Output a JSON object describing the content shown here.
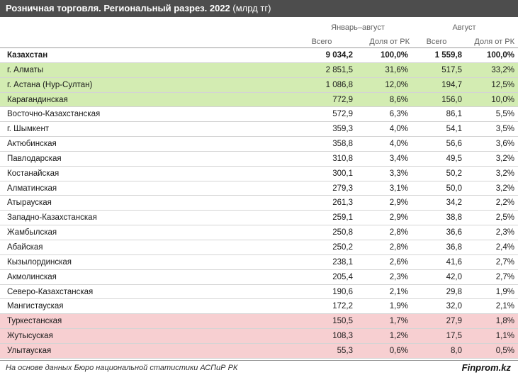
{
  "title": {
    "main": "Розничная торговля. Региональный разрез. 2022",
    "unit": " (млрд тг)"
  },
  "groups": {
    "period1": "Январь–август",
    "period2": "Август"
  },
  "columns": {
    "total1": "Всего",
    "share1": "Доля от РК",
    "total2": "Всего",
    "share2": "Доля от РК"
  },
  "colors": {
    "green": "#d3ecb2",
    "red": "#f7cfd1",
    "title_bg": "#4d4d4d"
  },
  "rows": [
    {
      "name": "Казахстан",
      "v1": "9 034,2",
      "v2": "100,0%",
      "v3": "1 559,8",
      "v4": "100,0%",
      "style": "total"
    },
    {
      "name": "г. Алматы",
      "v1": "2 851,5",
      "v2": "31,6%",
      "v3": "517,5",
      "v4": "33,2%",
      "style": "green"
    },
    {
      "name": "г. Астана (Нур-Султан)",
      "v1": "1 086,8",
      "v2": "12,0%",
      "v3": "194,7",
      "v4": "12,5%",
      "style": "green"
    },
    {
      "name": "Карагандинская",
      "v1": "772,9",
      "v2": "8,6%",
      "v3": "156,0",
      "v4": "10,0%",
      "style": "green"
    },
    {
      "name": "Восточно-Казахстанская",
      "v1": "572,9",
      "v2": "6,3%",
      "v3": "86,1",
      "v4": "5,5%",
      "style": "white"
    },
    {
      "name": "г. Шымкент",
      "v1": "359,3",
      "v2": "4,0%",
      "v3": "54,1",
      "v4": "3,5%",
      "style": "white"
    },
    {
      "name": "Актюбинская",
      "v1": "358,8",
      "v2": "4,0%",
      "v3": "56,6",
      "v4": "3,6%",
      "style": "white"
    },
    {
      "name": "Павлодарская",
      "v1": "310,8",
      "v2": "3,4%",
      "v3": "49,5",
      "v4": "3,2%",
      "style": "white"
    },
    {
      "name": "Костанайская",
      "v1": "300,1",
      "v2": "3,3%",
      "v3": "50,2",
      "v4": "3,2%",
      "style": "white"
    },
    {
      "name": "Алматинская",
      "v1": "279,3",
      "v2": "3,1%",
      "v3": "50,0",
      "v4": "3,2%",
      "style": "white"
    },
    {
      "name": "Атырауская",
      "v1": "261,3",
      "v2": "2,9%",
      "v3": "34,2",
      "v4": "2,2%",
      "style": "white"
    },
    {
      "name": "Западно-Казахстанская",
      "v1": "259,1",
      "v2": "2,9%",
      "v3": "38,8",
      "v4": "2,5%",
      "style": "white"
    },
    {
      "name": "Жамбылская",
      "v1": "250,8",
      "v2": "2,8%",
      "v3": "36,6",
      "v4": "2,3%",
      "style": "white"
    },
    {
      "name": "Абайская",
      "v1": "250,2",
      "v2": "2,8%",
      "v3": "36,8",
      "v4": "2,4%",
      "style": "white"
    },
    {
      "name": "Кызылординская",
      "v1": "238,1",
      "v2": "2,6%",
      "v3": "41,6",
      "v4": "2,7%",
      "style": "white"
    },
    {
      "name": "Акмолинская",
      "v1": "205,4",
      "v2": "2,3%",
      "v3": "42,0",
      "v4": "2,7%",
      "style": "white"
    },
    {
      "name": "Северо-Казахстанская",
      "v1": "190,6",
      "v2": "2,1%",
      "v3": "29,8",
      "v4": "1,9%",
      "style": "white"
    },
    {
      "name": "Мангистауская",
      "v1": "172,2",
      "v2": "1,9%",
      "v3": "32,0",
      "v4": "2,1%",
      "style": "white"
    },
    {
      "name": "Туркестанская",
      "v1": "150,5",
      "v2": "1,7%",
      "v3": "27,9",
      "v4": "1,8%",
      "style": "red"
    },
    {
      "name": "Жутысуская",
      "v1": "108,3",
      "v2": "1,2%",
      "v3": "17,5",
      "v4": "1,1%",
      "style": "red"
    },
    {
      "name": "Улытауская",
      "v1": "55,3",
      "v2": "0,6%",
      "v3": "8,0",
      "v4": "0,5%",
      "style": "red"
    }
  ],
  "footer": {
    "source": "На основе данных Бюро национальной статистики АСПиР РК",
    "brand": "Finprom.kz"
  }
}
